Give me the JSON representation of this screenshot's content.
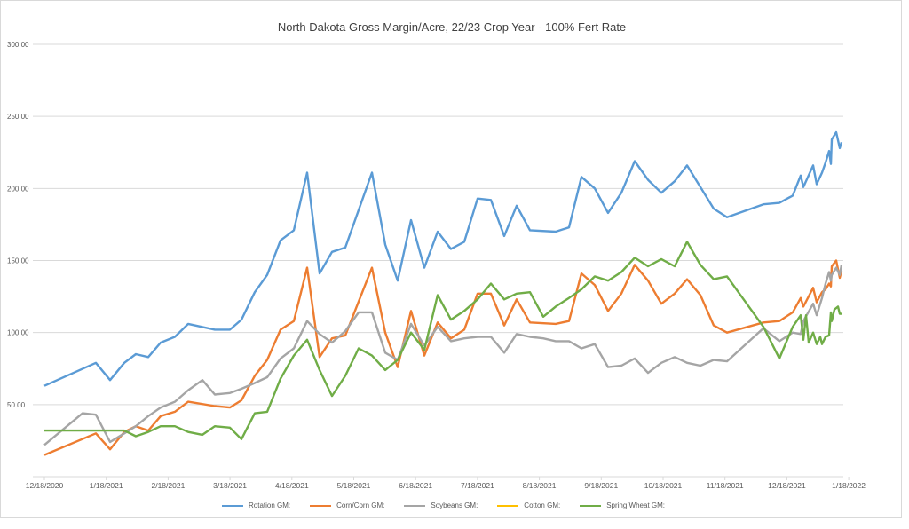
{
  "chart_data": {
    "type": "line",
    "title": "North Dakota Gross Margin/Acre, 22/23 Crop Year - 100% Fert Rate",
    "xlabel": "",
    "ylabel": "",
    "ylim": [
      0,
      300
    ],
    "yticks": [
      "",
      "50.00",
      "100.00",
      "150.00",
      "200.00",
      "250.00",
      "300.00"
    ],
    "x_tick_labels": [
      "12/18/2020",
      "1/18/2021",
      "2/18/2021",
      "3/18/2021",
      "4/18/2021",
      "5/18/2021",
      "6/18/2021",
      "7/18/2021",
      "8/18/2021",
      "9/18/2021",
      "10/18/2021",
      "11/18/2021",
      "12/18/2021",
      "1/18/2022"
    ],
    "grid": "horizontal",
    "legend_position": "bottom",
    "series": [
      {
        "name": "Rotation GM:",
        "color": "#5b9bd5",
        "points": [
          [
            50,
            63
          ],
          [
            108,
            79
          ],
          [
            124,
            67
          ],
          [
            140,
            79
          ],
          [
            153,
            85
          ],
          [
            167,
            83
          ],
          [
            181,
            93
          ],
          [
            197,
            97
          ],
          [
            212,
            106
          ],
          [
            242,
            102
          ],
          [
            259,
            102
          ],
          [
            272,
            109
          ],
          [
            287,
            128
          ],
          [
            301,
            140
          ],
          [
            316,
            164
          ],
          [
            331,
            171
          ],
          [
            346,
            211
          ],
          [
            360,
            141
          ],
          [
            374,
            156
          ],
          [
            389,
            159
          ],
          [
            419,
            211
          ],
          [
            434,
            161
          ],
          [
            448,
            136
          ],
          [
            463,
            178
          ],
          [
            478,
            145
          ],
          [
            493,
            170
          ],
          [
            508,
            158
          ],
          [
            523,
            163
          ],
          [
            538,
            193
          ],
          [
            553,
            192
          ],
          [
            568,
            167
          ],
          [
            582,
            188
          ],
          [
            597,
            171
          ],
          [
            626,
            170
          ],
          [
            641,
            173
          ],
          [
            655,
            208
          ],
          [
            670,
            200
          ],
          [
            685,
            183
          ],
          [
            700,
            197
          ],
          [
            715,
            219
          ],
          [
            730,
            206
          ],
          [
            745,
            197
          ],
          [
            760,
            205
          ],
          [
            774,
            216
          ],
          [
            789,
            201
          ],
          [
            804,
            186
          ],
          [
            819,
            180
          ],
          [
            860,
            189
          ],
          [
            878,
            190
          ],
          [
            893,
            195
          ],
          [
            902,
            209
          ],
          [
            905,
            201
          ],
          [
            916,
            216
          ],
          [
            920,
            203
          ],
          [
            926,
            211
          ],
          [
            930,
            218
          ],
          [
            934,
            226
          ],
          [
            936,
            217
          ],
          [
            937,
            234
          ],
          [
            942,
            239
          ],
          [
            946,
            228
          ],
          [
            948,
            232
          ]
        ]
      },
      {
        "name": "Corn/Corn GM:",
        "color": "#ed7d31",
        "points": [
          [
            50,
            15
          ],
          [
            108,
            30
          ],
          [
            124,
            19
          ],
          [
            140,
            31
          ],
          [
            153,
            35
          ],
          [
            167,
            32
          ],
          [
            181,
            42
          ],
          [
            197,
            45
          ],
          [
            212,
            52
          ],
          [
            242,
            49
          ],
          [
            259,
            48
          ],
          [
            272,
            53
          ],
          [
            287,
            70
          ],
          [
            301,
            81
          ],
          [
            316,
            102
          ],
          [
            331,
            108
          ],
          [
            346,
            145
          ],
          [
            360,
            83
          ],
          [
            374,
            96
          ],
          [
            389,
            98
          ],
          [
            419,
            145
          ],
          [
            434,
            100
          ],
          [
            448,
            76
          ],
          [
            463,
            115
          ],
          [
            478,
            84
          ],
          [
            493,
            107
          ],
          [
            508,
            96
          ],
          [
            523,
            102
          ],
          [
            538,
            127
          ],
          [
            553,
            127
          ],
          [
            568,
            105
          ],
          [
            582,
            123
          ],
          [
            597,
            107
          ],
          [
            626,
            106
          ],
          [
            641,
            108
          ],
          [
            655,
            141
          ],
          [
            670,
            133
          ],
          [
            685,
            115
          ],
          [
            700,
            127
          ],
          [
            715,
            147
          ],
          [
            730,
            136
          ],
          [
            745,
            120
          ],
          [
            760,
            127
          ],
          [
            774,
            137
          ],
          [
            789,
            126
          ],
          [
            804,
            105
          ],
          [
            819,
            100
          ],
          [
            860,
            107
          ],
          [
            878,
            108
          ],
          [
            893,
            114
          ],
          [
            902,
            124
          ],
          [
            905,
            118
          ],
          [
            916,
            131
          ],
          [
            920,
            121
          ],
          [
            926,
            128
          ],
          [
            930,
            130
          ],
          [
            934,
            134
          ],
          [
            936,
            132
          ],
          [
            937,
            146
          ],
          [
            942,
            150
          ],
          [
            946,
            138
          ],
          [
            948,
            143
          ]
        ]
      },
      {
        "name": "Soybeans GM:",
        "color": "#a5a5a5",
        "points": [
          [
            50,
            22
          ],
          [
            93,
            44
          ],
          [
            108,
            43
          ],
          [
            124,
            24
          ],
          [
            140,
            30
          ],
          [
            153,
            35
          ],
          [
            167,
            42
          ],
          [
            181,
            48
          ],
          [
            197,
            52
          ],
          [
            212,
            60
          ],
          [
            228,
            67
          ],
          [
            242,
            57
          ],
          [
            259,
            58
          ],
          [
            272,
            61
          ],
          [
            287,
            65
          ],
          [
            301,
            69
          ],
          [
            316,
            82
          ],
          [
            331,
            89
          ],
          [
            346,
            108
          ],
          [
            360,
            99
          ],
          [
            374,
            93
          ],
          [
            389,
            101
          ],
          [
            404,
            114
          ],
          [
            419,
            114
          ],
          [
            434,
            86
          ],
          [
            448,
            81
          ],
          [
            463,
            106
          ],
          [
            478,
            91
          ],
          [
            493,
            104
          ],
          [
            508,
            94
          ],
          [
            523,
            96
          ],
          [
            538,
            97
          ],
          [
            553,
            97
          ],
          [
            568,
            86
          ],
          [
            582,
            99
          ],
          [
            597,
            97
          ],
          [
            612,
            96
          ],
          [
            626,
            94
          ],
          [
            641,
            94
          ],
          [
            655,
            89
          ],
          [
            670,
            92
          ],
          [
            685,
            76
          ],
          [
            700,
            77
          ],
          [
            715,
            82
          ],
          [
            730,
            72
          ],
          [
            745,
            79
          ],
          [
            760,
            83
          ],
          [
            774,
            79
          ],
          [
            789,
            77
          ],
          [
            804,
            81
          ],
          [
            819,
            80
          ],
          [
            860,
            103
          ],
          [
            878,
            94
          ],
          [
            893,
            100
          ],
          [
            902,
            99
          ],
          [
            905,
            108
          ],
          [
            916,
            120
          ],
          [
            920,
            112
          ],
          [
            926,
            124
          ],
          [
            930,
            134
          ],
          [
            934,
            142
          ],
          [
            936,
            136
          ],
          [
            937,
            140
          ],
          [
            942,
            145
          ],
          [
            946,
            140
          ],
          [
            948,
            147
          ]
        ]
      },
      {
        "name": "Cotton GM:",
        "color": "#ffc000",
        "points": []
      },
      {
        "name": "Spring Wheat GM:",
        "color": "#70ad47",
        "points": [
          [
            50,
            32
          ],
          [
            140,
            32
          ],
          [
            153,
            28
          ],
          [
            167,
            31
          ],
          [
            181,
            35
          ],
          [
            197,
            35
          ],
          [
            212,
            31
          ],
          [
            228,
            29
          ],
          [
            242,
            35
          ],
          [
            259,
            34
          ],
          [
            272,
            26
          ],
          [
            287,
            44
          ],
          [
            301,
            45
          ],
          [
            316,
            68
          ],
          [
            331,
            84
          ],
          [
            346,
            95
          ],
          [
            360,
            74
          ],
          [
            374,
            56
          ],
          [
            389,
            70
          ],
          [
            404,
            89
          ],
          [
            419,
            84
          ],
          [
            434,
            74
          ],
          [
            448,
            81
          ],
          [
            463,
            100
          ],
          [
            478,
            88
          ],
          [
            493,
            126
          ],
          [
            508,
            109
          ],
          [
            523,
            115
          ],
          [
            538,
            123
          ],
          [
            553,
            134
          ],
          [
            568,
            123
          ],
          [
            582,
            127
          ],
          [
            597,
            128
          ],
          [
            612,
            111
          ],
          [
            626,
            118
          ],
          [
            641,
            124
          ],
          [
            655,
            130
          ],
          [
            670,
            139
          ],
          [
            685,
            136
          ],
          [
            700,
            142
          ],
          [
            715,
            152
          ],
          [
            730,
            146
          ],
          [
            745,
            151
          ],
          [
            760,
            146
          ],
          [
            774,
            163
          ],
          [
            789,
            147
          ],
          [
            804,
            137
          ],
          [
            819,
            139
          ],
          [
            860,
            104
          ],
          [
            878,
            82
          ],
          [
            893,
            104
          ],
          [
            902,
            112
          ],
          [
            905,
            95
          ],
          [
            908,
            112
          ],
          [
            911,
            93
          ],
          [
            916,
            100
          ],
          [
            920,
            92
          ],
          [
            924,
            97
          ],
          [
            926,
            92
          ],
          [
            930,
            97
          ],
          [
            934,
            98
          ],
          [
            936,
            114
          ],
          [
            937,
            108
          ],
          [
            940,
            116
          ],
          [
            944,
            118
          ],
          [
            946,
            113
          ],
          [
            948,
            113
          ]
        ]
      }
    ]
  },
  "legend": [
    "Rotation GM:",
    "Corn/Corn GM:",
    "Soybeans GM:",
    "Cotton GM:",
    "Spring Wheat GM:"
  ],
  "colors": {
    "Rotation": "#5b9bd5",
    "Corn": "#ed7d31",
    "Soybeans": "#a5a5a5",
    "Cotton": "#ffc000",
    "Wheat": "#70ad47",
    "grid": "#d9d9d9"
  }
}
